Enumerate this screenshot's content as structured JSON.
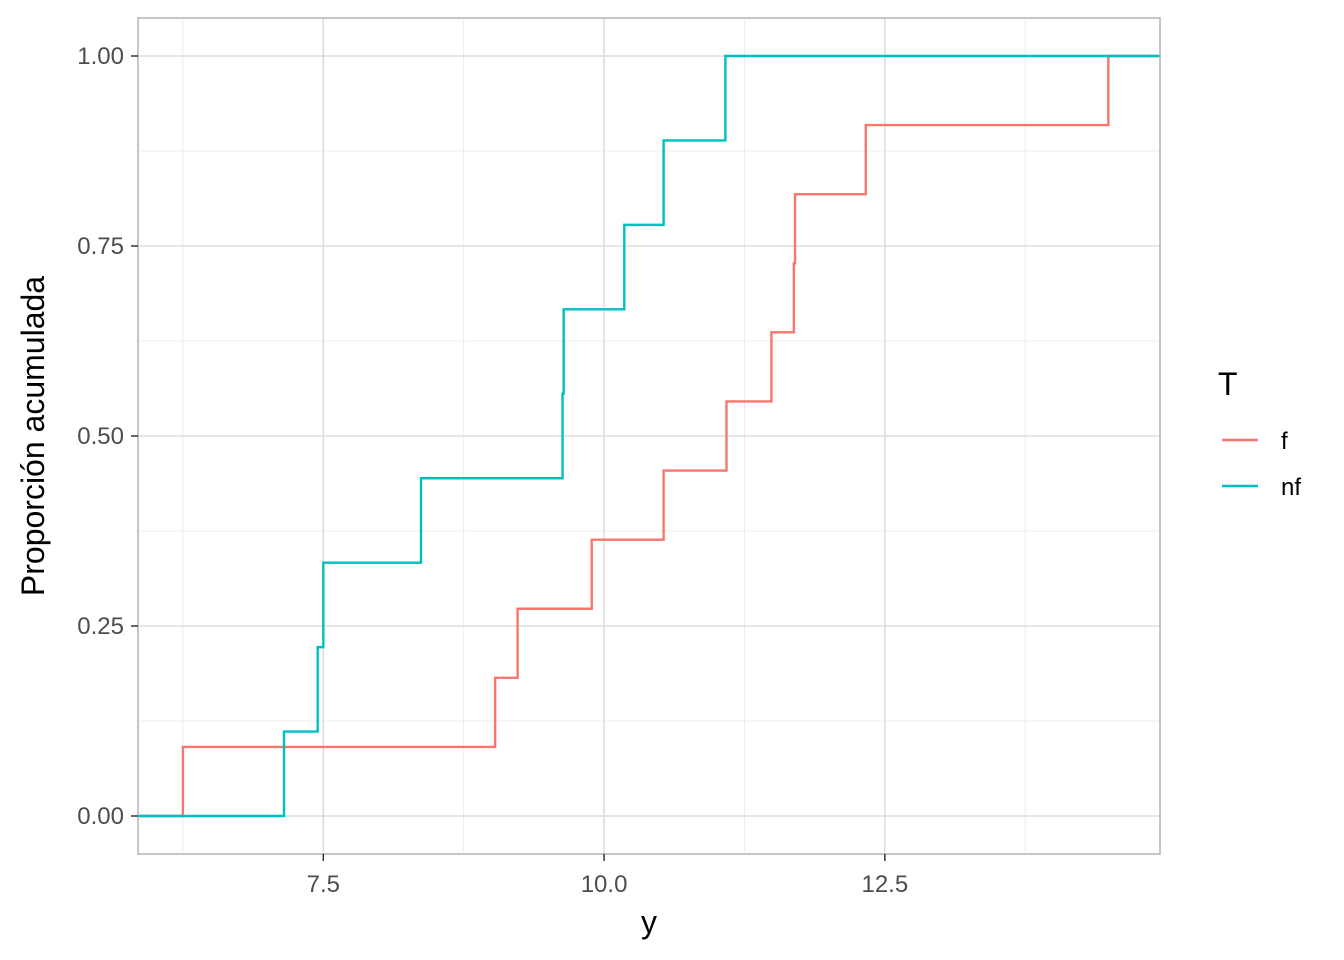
{
  "chart_data": {
    "type": "line",
    "subtype": "step (empirical cumulative distribution)",
    "xlabel": "y",
    "ylabel": "Proporción acumulada",
    "xlim": [
      5.85,
      14.95
    ],
    "ylim": [
      -0.05,
      1.05
    ],
    "x_ticks": [
      7.5,
      10.0,
      12.5
    ],
    "x_tick_labels": [
      "7.5",
      "10.0",
      "12.5"
    ],
    "y_ticks": [
      0.0,
      0.25,
      0.5,
      0.75,
      1.0
    ],
    "y_tick_labels": [
      "0.00",
      "0.25",
      "0.50",
      "0.75",
      "1.00"
    ],
    "x_minor_ticks": [
      6.25,
      8.75,
      11.25,
      13.75
    ],
    "y_minor_ticks": [
      0.125,
      0.375,
      0.625,
      0.875
    ],
    "grid": true,
    "legend": {
      "title": "T",
      "placement": "right"
    },
    "series": [
      {
        "name": "f",
        "color": "#F8766D",
        "steps": [
          {
            "x": 6.25,
            "y": 0.0909
          },
          {
            "x": 9.03,
            "y": 0.1818
          },
          {
            "x": 9.23,
            "y": 0.2727
          },
          {
            "x": 9.89,
            "y": 0.3636
          },
          {
            "x": 10.53,
            "y": 0.4545
          },
          {
            "x": 11.09,
            "y": 0.5455
          },
          {
            "x": 11.49,
            "y": 0.6364
          },
          {
            "x": 11.69,
            "y": 0.7273
          },
          {
            "x": 11.7,
            "y": 0.8182
          },
          {
            "x": 12.33,
            "y": 0.9091
          },
          {
            "x": 14.49,
            "y": 1.0
          }
        ]
      },
      {
        "name": "nf",
        "color": "#00BFC4",
        "steps": [
          {
            "x": 7.15,
            "y": 0.1111
          },
          {
            "x": 7.45,
            "y": 0.2222
          },
          {
            "x": 7.5,
            "y": 0.3333
          },
          {
            "x": 8.37,
            "y": 0.4444
          },
          {
            "x": 9.63,
            "y": 0.5556
          },
          {
            "x": 9.64,
            "y": 0.6667
          },
          {
            "x": 10.18,
            "y": 0.7778
          },
          {
            "x": 10.53,
            "y": 0.8889
          },
          {
            "x": 11.08,
            "y": 1.0
          }
        ]
      }
    ]
  }
}
